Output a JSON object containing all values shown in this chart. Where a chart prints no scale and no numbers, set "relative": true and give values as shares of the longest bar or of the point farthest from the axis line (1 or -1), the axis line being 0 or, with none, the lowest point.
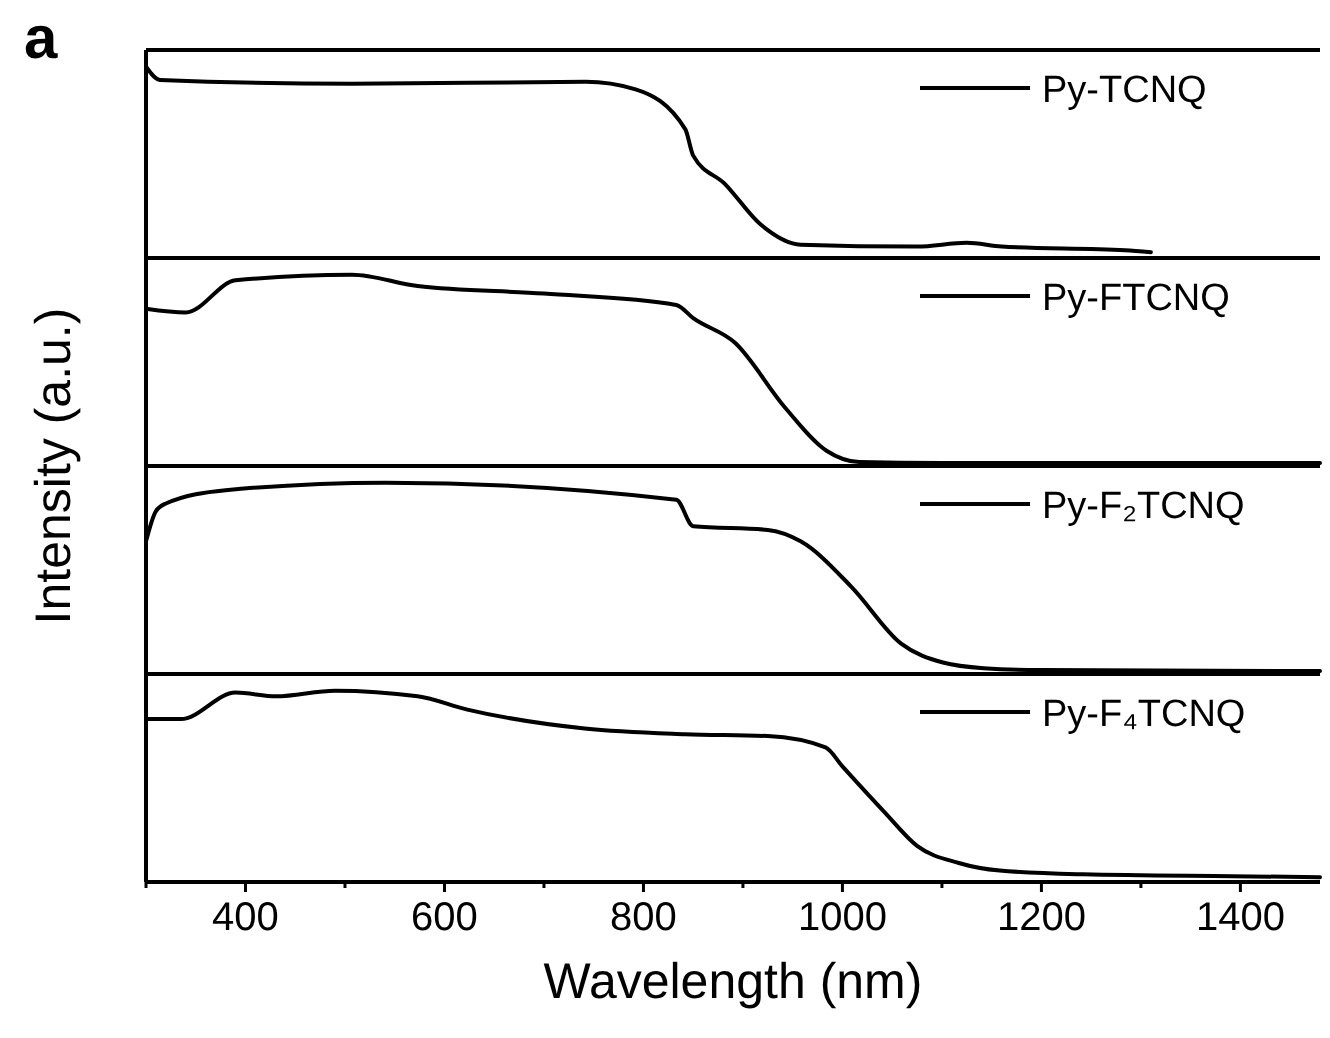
{
  "chart_data": [
    {
      "type": "line",
      "relative": true,
      "annotations": [
        "a"
      ],
      "ylabel": "Intensity (a.u.)",
      "xlim": [
        300,
        1480
      ],
      "tick_labels": false,
      "legend": "top right",
      "line_style": "solid",
      "series": [
        {
          "name": "Py-TCNQ",
          "color": "#000000",
          "x": [
            300,
            314,
            507,
            742,
            792,
            842,
            850,
            882,
            917,
            958,
            1075,
            1125,
            1160,
            1284,
            1310
          ],
          "values": [
            1,
            0.93,
            0.91,
            0.92,
            0.88,
            0.67,
            0.53,
            0.38,
            0.17,
            0.06,
            0.05,
            0.07,
            0.05,
            0.03,
            0.02
          ]
        }
      ]
    },
    {
      "type": "line",
      "relative": true,
      "xlim": [
        300,
        1480
      ],
      "tick_labels": false,
      "legend": "top right",
      "line_style": "solid",
      "series": [
        {
          "name": "Py-FTCNQ",
          "color": "#000000",
          "x": [
            300,
            340,
            390,
            507,
            573,
            700,
            833,
            850,
            892,
            942,
            984,
            1017,
            1100,
            1480
          ],
          "values": [
            0.82,
            0.8,
            0.97,
            1,
            0.94,
            0.9,
            0.84,
            0.77,
            0.64,
            0.3,
            0.07,
            0.01,
            0.005,
            0.005
          ]
        }
      ]
    },
    {
      "type": "line",
      "relative": true,
      "xlim": [
        300,
        1480
      ],
      "tick_labels": false,
      "legend": "top right",
      "line_style": "solid",
      "series": [
        {
          "name": "Py-F₂TCNQ",
          "color": "#000000",
          "x": [
            300,
            310,
            320,
            380,
            541,
            833,
            850,
            925,
            958,
            1009,
            1059,
            1101,
            1142,
            1200,
            1480
          ],
          "values": [
            0.69,
            0.85,
            0.89,
            0.96,
            1,
            0.91,
            0.77,
            0.75,
            0.69,
            0.45,
            0.15,
            0.05,
            0.02,
            0.01,
            0.005
          ]
        }
      ]
    },
    {
      "type": "line",
      "relative": true,
      "xlabel": "Wavelength (nm)",
      "xlim": [
        300,
        1480
      ],
      "tick_labels": "x",
      "legend": "top right",
      "line_style": "solid",
      "xticks": [
        {
          "value": 300,
          "label": null
        },
        400,
        {
          "value": 500,
          "label": null
        },
        600,
        {
          "value": 700,
          "label": null
        },
        800,
        {
          "value": 900,
          "label": null
        },
        1000,
        {
          "value": 1100,
          "label": null
        },
        1200,
        {
          "value": 1300,
          "label": null
        },
        1400
      ],
      "series": [
        {
          "name": "Py-F₄TCNQ",
          "color": "#000000",
          "x": [
            300,
            335,
            390,
            431,
            490,
            573,
            623,
            741,
            842,
            925,
            983,
            1000,
            1042,
            1075,
            1117,
            1158,
            1242,
            1392,
            1480
          ],
          "values": [
            0.85,
            0.85,
            0.99,
            0.97,
            1,
            0.97,
            0.9,
            0.8,
            0.77,
            0.76,
            0.7,
            0.6,
            0.36,
            0.18,
            0.09,
            0.05,
            0.03,
            0.02,
            0.015
          ]
        }
      ]
    }
  ]
}
